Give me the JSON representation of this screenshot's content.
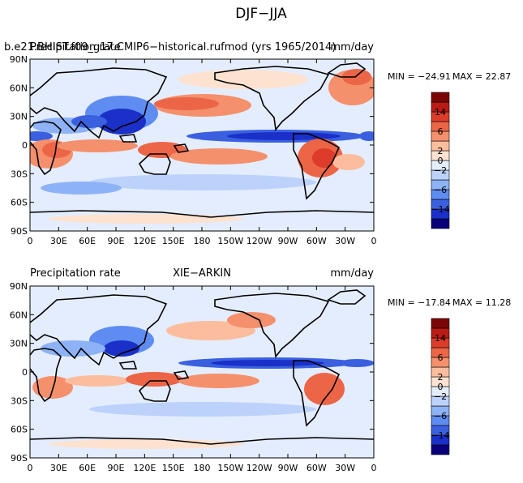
{
  "figure_title": "DJF−JJA",
  "colors": {
    "levels": [
      "#08007a",
      "#1a30c8",
      "#3a60e0",
      "#5e8cf0",
      "#8eb2f6",
      "#bcd2fa",
      "#e4edfd",
      "#fde2d0",
      "#fbbd9d",
      "#f5906d",
      "#ec6547",
      "#de3c2a",
      "#bc1a14",
      "#7c0606"
    ],
    "coast": "#000000"
  },
  "colorbar": {
    "labels": [
      "14",
      "6",
      "2",
      "0",
      "−2",
      "−6",
      "−14"
    ]
  },
  "chart_data": [
    {
      "type": "heatmap",
      "overlap_title_left": "Precipitation rate",
      "title_left": "b.e21.BHIST.f09_g17.CMIP6−historical.rufmod (yrs 1965/2014)",
      "title_right": "mm/day",
      "min_label": "MIN = −24.91",
      "max_label": "MAX =  22.87",
      "min": -24.91,
      "max": 22.87,
      "units": "mm/day",
      "x_ticks": [
        "0",
        "30E",
        "60E",
        "90E",
        "120E",
        "150E",
        "180",
        "150W",
        "120W",
        "90W",
        "60W",
        "30W",
        "0"
      ],
      "y_ticks": [
        "90N",
        "60N",
        "30N",
        "0",
        "30S",
        "60S",
        "90S"
      ],
      "colorbar_levels": [
        -14,
        -10,
        -6,
        -4,
        -2,
        -1,
        0,
        1,
        2,
        4,
        6,
        10,
        14
      ]
    },
    {
      "type": "heatmap",
      "title_left": "Precipitation rate",
      "title_center": "XIE−ARKIN",
      "title_right": "mm/day",
      "min_label": "MIN = −17.84",
      "max_label": "MAX =  11.28",
      "min": -17.84,
      "max": 11.28,
      "units": "mm/day",
      "x_ticks": [
        "0",
        "30E",
        "60E",
        "90E",
        "120E",
        "150E",
        "180",
        "150W",
        "120W",
        "90W",
        "60W",
        "30W",
        "0"
      ],
      "y_ticks": [
        "90N",
        "60N",
        "30N",
        "0",
        "30S",
        "60S",
        "90S"
      ],
      "colorbar_levels": [
        -14,
        -10,
        -6,
        -4,
        -2,
        -1,
        0,
        1,
        2,
        4,
        6,
        10,
        14
      ]
    }
  ]
}
